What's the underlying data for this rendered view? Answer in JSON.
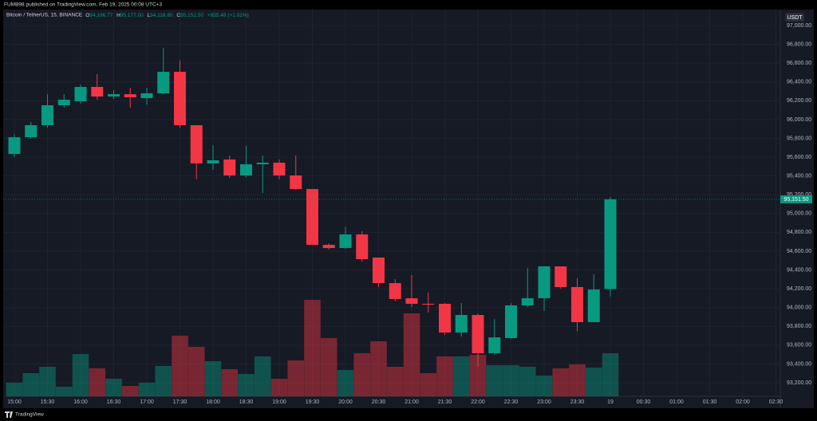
{
  "header": {
    "published": "FUMB98 published on TradingView.com, Feb 19, 2025 00:08 UTC+3",
    "brand": "TradingView"
  },
  "chart_data": {
    "type": "candlestick",
    "legend": {
      "symbol": "Bitcoin / TetherUS, 15, BINANCE",
      "open_label": "O",
      "open": "94,196.77",
      "high_label": "H",
      "high": "95,177.00",
      "low_label": "L",
      "low": "94,118.80",
      "close_label": "C",
      "close": "95,151.50",
      "change": "+955.48 (+1.01%)"
    },
    "currency": "USDT",
    "last_price_label": "95,151.50",
    "categories": [
      "15:00",
      null,
      "15:30",
      null,
      "16:00",
      null,
      "16:30",
      null,
      "17:00",
      null,
      "17:30",
      null,
      "18:00",
      null,
      "18:30",
      null,
      "19:00",
      null,
      "19:30",
      null,
      "20:00",
      null,
      "20:30",
      null,
      "21:00",
      null,
      "21:30",
      null,
      "22:00",
      null,
      "22:30",
      null,
      "23:00",
      null,
      "23:30",
      null,
      "19",
      null,
      "00:30",
      null,
      "01:00",
      null,
      "01:30",
      null,
      "02:00",
      null,
      "02:30"
    ],
    "open": [
      95634,
      95812,
      95940,
      96152,
      96194,
      96347,
      96245,
      96270,
      96228,
      96279,
      96508,
      95940,
      95533,
      95575,
      95405,
      95524,
      95541,
      95405,
      95261,
      94667,
      94633,
      94778,
      94532,
      94260,
      94099,
      94040,
      94040,
      93734,
      93921,
      93514,
      93675,
      94023,
      94099,
      94438,
      94218,
      93845,
      94196.77,
      null,
      null,
      null,
      null,
      null,
      null,
      null,
      null,
      null,
      null
    ],
    "high": [
      95846,
      95974,
      96270,
      96270,
      96372,
      96483,
      96313,
      96338,
      96338,
      96762,
      96627,
      95940,
      95728,
      95617,
      95719,
      95617,
      95575,
      95617,
      95261,
      94684,
      94862,
      94812,
      94532,
      94303,
      94345,
      94158,
      94048,
      94048,
      93938,
      93879,
      94048,
      94421,
      94438,
      94438,
      94311,
      94354,
      95177,
      null,
      null,
      null,
      null,
      null,
      null,
      null,
      null,
      null,
      null
    ],
    "low": [
      95600,
      95795,
      95914,
      96126,
      96169,
      96211,
      96220,
      96126,
      96160,
      96270,
      95914,
      95363,
      95465,
      95380,
      95388,
      95219,
      95363,
      95253,
      94667,
      94616,
      94625,
      94489,
      94218,
      94065,
      94006,
      93946,
      93709,
      93692,
      93370,
      93497,
      93666,
      94006,
      93963,
      94201,
      93751,
      93845,
      94118.8,
      null,
      null,
      null,
      null,
      null,
      null,
      null,
      null,
      null,
      null
    ],
    "close": [
      95812,
      95940,
      96152,
      96211,
      96347,
      96245,
      96270,
      96237,
      96279,
      96508,
      95940,
      95533,
      95567,
      95405,
      95524,
      95541,
      95405,
      95261,
      94667,
      94633,
      94778,
      94515,
      94260,
      94091,
      94040,
      94031,
      93734,
      93921,
      93514,
      93683,
      94023,
      94099,
      94438,
      94218,
      93845,
      94192,
      95151.5,
      null,
      null,
      null,
      null,
      null,
      null,
      null,
      null,
      null,
      null
    ],
    "volume": [
      17,
      29,
      37,
      12,
      53,
      35,
      22,
      13,
      17,
      38,
      76,
      62,
      44,
      34,
      28,
      50,
      22,
      45,
      121,
      73,
      33,
      54,
      69,
      37,
      104,
      29,
      50,
      50,
      52,
      39,
      39,
      37,
      26,
      35,
      40,
      36,
      54,
      null,
      null,
      null,
      null,
      null,
      null,
      null,
      null,
      null,
      null
    ],
    "up_color": "#089981",
    "down_color": "#f23645",
    "grid": true,
    "ylim": [
      93056,
      97153
    ],
    "yticks": [
      {
        "value": 93200,
        "label": "93,200.00"
      },
      {
        "value": 93400,
        "label": "93,400.00"
      },
      {
        "value": 93600,
        "label": "93,600.00"
      },
      {
        "value": 93800,
        "label": "93,800.00"
      },
      {
        "value": 94000,
        "label": "94,000.00"
      },
      {
        "value": 94200,
        "label": "94,200.00"
      },
      {
        "value": 94400,
        "label": "94,400.00"
      },
      {
        "value": 94600,
        "label": "94,600.00"
      },
      {
        "value": 94800,
        "label": "94,800.00"
      },
      {
        "value": 95000,
        "label": "95,000.00"
      },
      {
        "value": 95200,
        "label": "95,200.00"
      },
      {
        "value": 95400,
        "label": "95,400.00"
      },
      {
        "value": 95600,
        "label": "95,600.00"
      },
      {
        "value": 95800,
        "label": "95,800.00"
      },
      {
        "value": 96000,
        "label": "96,000.00"
      },
      {
        "value": 96200,
        "label": "96,200.00"
      },
      {
        "value": 96400,
        "label": "96,400.00"
      },
      {
        "value": 96600,
        "label": "96,600.00"
      },
      {
        "value": 96800,
        "label": "96,800.00"
      },
      {
        "value": 97000,
        "label": "97,000.00"
      }
    ]
  }
}
